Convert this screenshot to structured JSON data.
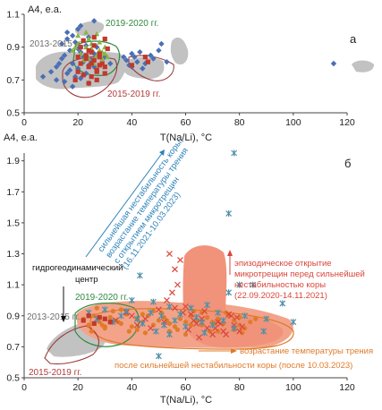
{
  "chart_data": [
    {
      "type": "scatter",
      "panel_label": "а",
      "ylabel": "A4, е.а.",
      "xlabel": "T(Na/Li), °C",
      "xlim": [
        0,
        120
      ],
      "ylim": [
        0.5,
        1.1
      ],
      "xticks": [
        "0",
        "20",
        "40",
        "60",
        "80",
        "100",
        "120"
      ],
      "yticks": [
        "0.5",
        "0.7",
        "0.9",
        "1.1"
      ],
      "grid": false,
      "annotations": {
        "g2013": "2013-2015 гг.",
        "g2019": "2019-2020 гг.",
        "g2015": "2015-2019 гг."
      },
      "series": [
        {
          "group": "2013-2015",
          "color": "#4a6fb5",
          "marker": "diamond",
          "x": [
            7,
            10,
            12,
            13,
            14,
            15,
            16,
            17,
            18,
            20,
            21,
            22,
            12,
            15,
            17,
            19,
            21,
            23,
            24,
            25,
            26,
            14,
            16,
            18,
            20,
            22,
            24,
            26,
            28,
            19,
            21,
            23,
            25,
            27,
            30,
            32,
            16,
            20,
            24,
            28,
            21,
            26,
            38,
            39,
            40,
            41,
            42,
            44,
            45,
            48,
            50,
            53,
            40,
            43,
            47,
            51,
            37,
            115,
            18,
            24
          ],
          "y": [
            0.72,
            0.75,
            0.78,
            0.8,
            0.83,
            0.85,
            0.74,
            0.88,
            0.8,
            0.77,
            0.9,
            0.84,
            0.7,
            0.69,
            0.76,
            0.72,
            0.71,
            0.74,
            0.79,
            0.82,
            0.86,
            0.92,
            0.95,
            0.97,
            0.89,
            0.81,
            0.83,
            0.78,
            0.85,
            0.93,
            0.87,
            0.91,
            0.88,
            0.9,
            0.84,
            0.8,
            0.99,
            1.01,
            0.96,
            0.86,
            1.03,
            1.06,
            0.82,
            0.79,
            0.78,
            0.84,
            0.81,
            0.77,
            0.8,
            0.83,
            0.88,
            0.81,
            0.86,
            0.87,
            0.85,
            0.92,
            0.84,
            0.8,
            0.66,
            0.68
          ]
        },
        {
          "group": "2019-2020",
          "color": "#8ab547",
          "marker": "triangle",
          "x": [
            18,
            19,
            20,
            21,
            22,
            23,
            24,
            25,
            26,
            27,
            28,
            29,
            30,
            31,
            22,
            24,
            26,
            28,
            30,
            20,
            23,
            27,
            25,
            29
          ],
          "y": [
            0.88,
            0.9,
            0.92,
            0.86,
            0.94,
            0.9,
            0.95,
            0.89,
            0.96,
            0.85,
            0.93,
            0.87,
            0.9,
            0.84,
            0.82,
            0.83,
            0.8,
            0.88,
            0.86,
            0.97,
            0.99,
            0.98,
            0.92,
            0.83
          ]
        },
        {
          "group": "2015-2019",
          "color": "#c0392b",
          "marker": "square",
          "x": [
            19,
            20,
            21,
            22,
            23,
            24,
            25,
            26,
            27,
            28,
            29,
            30,
            24,
            26,
            28,
            21,
            23,
            25,
            27,
            20,
            22,
            24,
            26,
            28,
            30,
            25,
            27,
            40,
            45,
            46,
            30,
            31
          ],
          "y": [
            0.7,
            0.75,
            0.8,
            0.73,
            0.85,
            0.78,
            0.72,
            0.82,
            0.76,
            0.86,
            0.8,
            0.74,
            0.88,
            0.91,
            0.79,
            0.9,
            0.83,
            0.87,
            0.7,
            0.84,
            0.94,
            0.68,
            0.96,
            0.84,
            0.78,
            0.8,
            0.75,
            0.79,
            0.84,
            0.81,
            0.95,
            0.89
          ]
        }
      ]
    },
    {
      "type": "scatter",
      "panel_label": "б",
      "ylabel": "A4, е.а.",
      "xlabel": "T(Na/Li), °C",
      "xlim": [
        0,
        120
      ],
      "ylim": [
        0.5,
        1.95
      ],
      "xticks": [
        "0",
        "20",
        "40",
        "60",
        "80",
        "100",
        "120"
      ],
      "yticks": [
        "0.5",
        "0.7",
        "0.9",
        "1.1",
        "1.3",
        "1.5",
        "1.7",
        "1.9"
      ],
      "grid": false,
      "annotations": {
        "g2013": "2013-2015 гг.",
        "g2019": "2019-2020 гг.",
        "g2015": "2015-2019 гг.",
        "center": "гидрогеодинамический центр",
        "blue_text": [
          "сильнейшая нестабильность коры,",
          "возрастание температуры трения",
          "с открытием микротрещин",
          "(16.11.2021-10.03.2023)"
        ],
        "red_text": [
          "эпизодическое открытие",
          "микротрещин перед сильнейшей",
          "нестабильностью коры",
          "(22.09.2020-14.11.2021)"
        ],
        "orange_text": [
          "возрастание температуры трения",
          "после сильнейшей нестабильности коры (после 10.03.2023)"
        ]
      },
      "series": [
        {
          "group": "after-10.03.2023",
          "color": "#e07b2a",
          "marker": "circle",
          "x": [
            22,
            24,
            26,
            28,
            30,
            32,
            34,
            36,
            38,
            40,
            42,
            44,
            46,
            48,
            50,
            52,
            54,
            56,
            58,
            60,
            62,
            64,
            66,
            68,
            70,
            72,
            74,
            76,
            78,
            80,
            82,
            84,
            27,
            33,
            39,
            45,
            51,
            57,
            63,
            69,
            75,
            81,
            30,
            36,
            42,
            48,
            54,
            60,
            66,
            72,
            78,
            35,
            44,
            53,
            62,
            71,
            80,
            86,
            25,
            29
          ],
          "y": [
            0.88,
            0.84,
            0.9,
            0.86,
            0.82,
            0.89,
            0.87,
            0.85,
            0.91,
            0.83,
            0.88,
            0.86,
            0.9,
            0.84,
            0.87,
            0.89,
            0.85,
            0.83,
            0.88,
            0.86,
            0.9,
            0.87,
            0.84,
            0.89,
            0.86,
            0.88,
            0.85,
            0.9,
            0.87,
            0.84,
            0.82,
            0.86,
            0.95,
            0.93,
            0.8,
            0.79,
            0.92,
            0.81,
            0.93,
            0.8,
            0.92,
            0.79,
            0.83,
            0.94,
            0.81,
            0.93,
            0.8,
            0.78,
            0.92,
            0.8,
            0.81,
            0.86,
            0.91,
            0.87,
            0.84,
            0.85,
            0.89,
            0.88,
            0.8,
            0.84
          ]
        },
        {
          "group": "22.09.2020-14.11.2021",
          "color": "#d9453a",
          "marker": "x",
          "x": [
            40,
            45,
            50,
            52,
            54,
            56,
            58,
            55,
            57,
            60,
            62,
            64,
            66,
            68,
            70,
            72,
            74,
            76,
            78,
            80,
            53,
            59,
            63,
            67,
            71,
            75,
            79,
            42,
            47,
            56,
            61,
            65,
            73,
            77,
            81,
            34,
            38
          ],
          "y": [
            0.9,
            0.88,
            0.94,
            0.86,
            1.3,
            1.2,
            1.26,
            1.05,
            1.1,
            0.96,
            0.91,
            0.85,
            0.88,
            0.82,
            0.78,
            0.86,
            0.8,
            0.91,
            0.84,
            0.8,
            1.0,
            0.92,
            0.87,
            0.93,
            0.82,
            0.78,
            0.89,
            0.84,
            0.82,
            0.95,
            0.81,
            0.76,
            0.85,
            0.9,
            0.83,
            0.87,
            0.92
          ]
        },
        {
          "group": "16.11.2021-10.03.2023",
          "color": "#4f90a8",
          "marker": "asterisk",
          "x": [
            24,
            27,
            30,
            33,
            36,
            38,
            40,
            42,
            44,
            47,
            49,
            50,
            51,
            52,
            54,
            56,
            58,
            60,
            62,
            64,
            66,
            68,
            70,
            72,
            74,
            76,
            78,
            80,
            82,
            85,
            90,
            96,
            100,
            78,
            76,
            48,
            43,
            54,
            67,
            89
          ],
          "y": [
            0.92,
            0.88,
            0.94,
            0.86,
            0.9,
            0.93,
            1.0,
            0.88,
            0.85,
            0.92,
            0.8,
            0.64,
            0.9,
            0.84,
            0.96,
            0.87,
            0.91,
            0.83,
            0.95,
            0.89,
            0.86,
            0.97,
            0.84,
            0.92,
            0.87,
            1.05,
            0.82,
            1.1,
            0.9,
            1.1,
            0.88,
            0.98,
            0.86,
            1.95,
            1.56,
            0.99,
            1.16,
            0.78,
            0.79,
            0.8
          ]
        },
        {
          "group": "2015-2019",
          "color": "#c0392b",
          "marker": "square",
          "x": [
            22,
            24,
            26,
            28,
            30,
            32
          ],
          "y": [
            0.87,
            0.9,
            0.85,
            0.89,
            0.88,
            0.86
          ]
        }
      ]
    }
  ]
}
